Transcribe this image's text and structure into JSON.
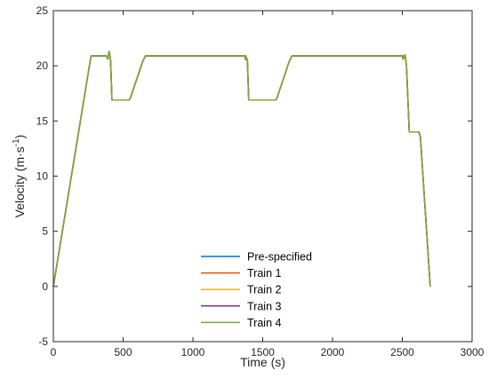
{
  "chart_data": {
    "type": "line",
    "title": "",
    "xlabel": "Time (s)",
    "ylabel": {
      "main": "Velocity (m·s",
      "sup": "-1",
      "close": ")"
    },
    "xlim": [
      0,
      3000
    ],
    "ylim": [
      -5,
      25
    ],
    "xticks": [
      0,
      500,
      1000,
      1500,
      2000,
      2500,
      3000
    ],
    "yticks": [
      -5,
      0,
      5,
      10,
      15,
      20,
      25
    ],
    "grid": false,
    "legend_position": "bottom-center",
    "series": [
      {
        "name": "Pre-specified",
        "color": "#0072BD",
        "x": [
          0,
          270,
          380,
          390,
          395,
          400,
          410,
          420,
          540,
          550,
          640,
          660,
          1370,
          1375,
          1380,
          1385,
          1390,
          1400,
          1590,
          1600,
          1690,
          1710,
          2500,
          2505,
          2510,
          2515,
          2520,
          2530,
          2550,
          2560,
          2620,
          2630,
          2700
        ],
        "y": [
          0,
          20.9,
          20.9,
          20.6,
          21.0,
          21.3,
          20.5,
          16.9,
          16.9,
          17.0,
          20.4,
          20.9,
          20.9,
          20.6,
          20.9,
          20.5,
          20.6,
          16.9,
          16.9,
          17.0,
          20.4,
          20.9,
          20.9,
          20.6,
          20.9,
          20.7,
          21.0,
          20.0,
          14.0,
          14.0,
          14.0,
          13.5,
          0
        ]
      },
      {
        "name": "Train 1",
        "color": "#D95319",
        "x": [
          0,
          270,
          380,
          390,
          395,
          400,
          410,
          420,
          540,
          550,
          640,
          660,
          1370,
          1375,
          1380,
          1385,
          1390,
          1400,
          1590,
          1600,
          1690,
          1710,
          2500,
          2505,
          2510,
          2515,
          2520,
          2530,
          2550,
          2560,
          2620,
          2630,
          2700
        ],
        "y": [
          0,
          20.9,
          20.9,
          20.6,
          21.0,
          21.3,
          20.5,
          16.9,
          16.9,
          17.0,
          20.4,
          20.9,
          20.9,
          20.6,
          20.9,
          20.5,
          20.6,
          16.9,
          16.9,
          17.0,
          20.4,
          20.9,
          20.9,
          20.6,
          20.9,
          20.7,
          21.0,
          20.0,
          14.0,
          14.0,
          14.0,
          13.5,
          0
        ]
      },
      {
        "name": "Train 2",
        "color": "#EDB120",
        "x": [
          0,
          270,
          380,
          390,
          395,
          400,
          410,
          420,
          540,
          550,
          640,
          660,
          1370,
          1375,
          1380,
          1385,
          1390,
          1400,
          1590,
          1600,
          1690,
          1710,
          2500,
          2505,
          2510,
          2515,
          2520,
          2530,
          2550,
          2560,
          2620,
          2630,
          2700
        ],
        "y": [
          0,
          20.9,
          20.9,
          20.6,
          21.0,
          21.3,
          20.5,
          16.9,
          16.9,
          17.0,
          20.4,
          20.9,
          20.9,
          20.6,
          20.9,
          20.5,
          20.6,
          16.9,
          16.9,
          17.0,
          20.4,
          20.9,
          20.9,
          20.6,
          20.9,
          20.7,
          21.0,
          20.0,
          14.0,
          14.0,
          14.0,
          13.5,
          0
        ]
      },
      {
        "name": "Train 3",
        "color": "#7E2F8E",
        "x": [
          0,
          270,
          380,
          390,
          395,
          400,
          410,
          420,
          540,
          550,
          640,
          660,
          1370,
          1375,
          1380,
          1385,
          1390,
          1400,
          1590,
          1600,
          1690,
          1710,
          2500,
          2505,
          2510,
          2515,
          2520,
          2530,
          2550,
          2560,
          2620,
          2630,
          2700
        ],
        "y": [
          0,
          20.9,
          20.9,
          20.6,
          21.0,
          21.3,
          20.5,
          16.9,
          16.9,
          17.0,
          20.4,
          20.9,
          20.9,
          20.6,
          20.9,
          20.5,
          20.6,
          16.9,
          16.9,
          17.0,
          20.4,
          20.9,
          20.9,
          20.6,
          20.9,
          20.7,
          21.0,
          20.0,
          14.0,
          14.0,
          14.0,
          13.5,
          0
        ]
      },
      {
        "name": "Train 4",
        "color": "#77AC30",
        "x": [
          0,
          270,
          380,
          390,
          395,
          400,
          410,
          420,
          540,
          550,
          640,
          660,
          1370,
          1375,
          1380,
          1385,
          1390,
          1400,
          1590,
          1600,
          1690,
          1710,
          2500,
          2505,
          2510,
          2515,
          2520,
          2530,
          2550,
          2560,
          2620,
          2630,
          2700
        ],
        "y": [
          0,
          20.9,
          20.9,
          20.6,
          21.0,
          21.3,
          20.5,
          16.9,
          16.9,
          17.0,
          20.4,
          20.9,
          20.9,
          20.6,
          20.9,
          20.5,
          20.6,
          16.9,
          16.9,
          17.0,
          20.4,
          20.9,
          20.9,
          20.6,
          20.9,
          20.7,
          21.0,
          20.0,
          14.0,
          14.0,
          14.0,
          13.5,
          0
        ]
      }
    ]
  }
}
